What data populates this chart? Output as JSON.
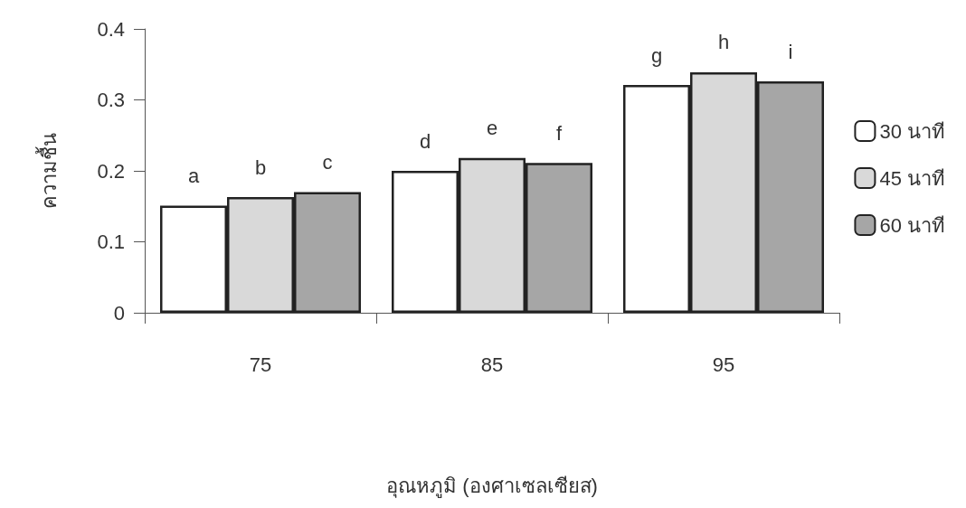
{
  "chart_data": {
    "type": "bar",
    "xlabel": "อุณหภูมิ (องศาเซลเซียส)",
    "ylabel": "ความชื้น",
    "categories": [
      "75",
      "85",
      "95"
    ],
    "series": [
      {
        "name": "30 นาที",
        "color": "#ffffff",
        "values": [
          0.151,
          0.2,
          0.321
        ],
        "value_labels": [
          "a",
          "d",
          "g"
        ]
      },
      {
        "name": "45 นาที",
        "color": "#d9d9d9",
        "values": [
          0.163,
          0.218,
          0.339
        ],
        "value_labels": [
          "b",
          "e",
          "h"
        ]
      },
      {
        "name": "60 นาที",
        "color": "#a6a6a6",
        "values": [
          0.17,
          0.211,
          0.326
        ],
        "value_labels": [
          "c",
          "f",
          "i"
        ]
      }
    ],
    "ylim": [
      0,
      0.4
    ],
    "yticks": [
      0,
      0.1,
      0.2,
      0.3,
      0.4
    ],
    "grid": false,
    "legend": "right"
  }
}
